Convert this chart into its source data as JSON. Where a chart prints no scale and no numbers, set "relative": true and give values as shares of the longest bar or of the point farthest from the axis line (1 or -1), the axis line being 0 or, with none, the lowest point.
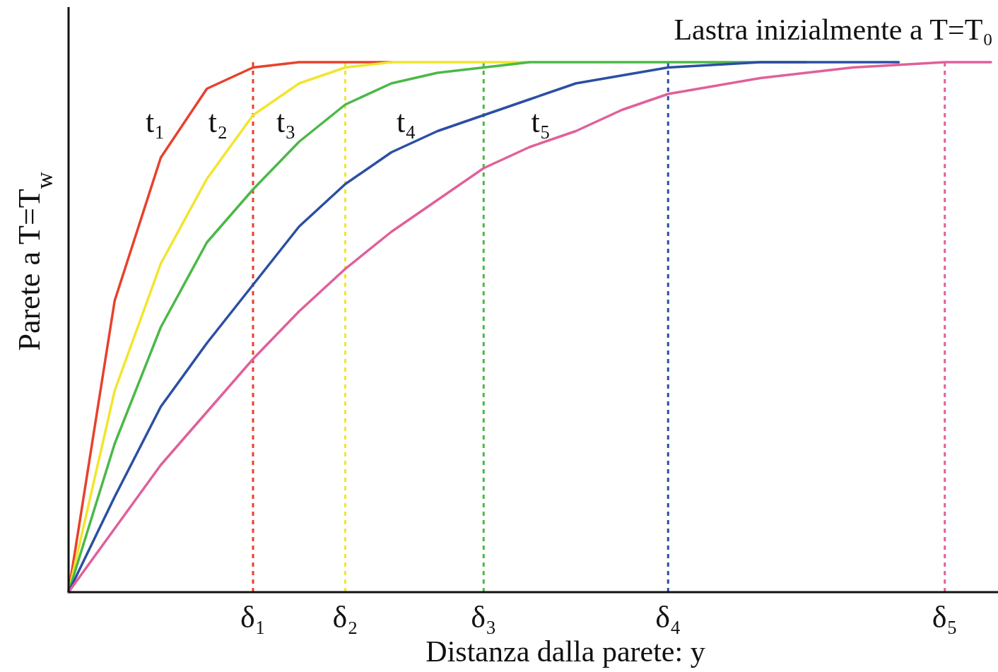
{
  "chart_data": {
    "type": "line",
    "relative": true,
    "title": "Lastra inizialmente a T=T₀",
    "xlabel": "Distanza dalla parete:  y",
    "ylabel": "Parete a T=T$_{w}$",
    "line_style": "solid",
    "categories": [
      null,
      null,
      null,
      null,
      "δ₁",
      null,
      "δ₂",
      null,
      null,
      "δ₃",
      null,
      null,
      null,
      "δ₄",
      null,
      null,
      null,
      null,
      null,
      "δ₅",
      null
    ],
    "series": [
      {
        "name": "t₁",
        "color": "#e8412c",
        "values": [
          0,
          0.55,
          0.82,
          0.95,
          0.99,
          1,
          1,
          1,
          null,
          null,
          null,
          null,
          null,
          null,
          null,
          null,
          null,
          null,
          null,
          null,
          null
        ]
      },
      {
        "name": "t₂",
        "color": "#f2e52e",
        "values": [
          0,
          0.38,
          0.62,
          0.78,
          0.9,
          0.96,
          0.99,
          1,
          1,
          1,
          1,
          null,
          null,
          null,
          null,
          null,
          null,
          null,
          null,
          null,
          null
        ]
      },
      {
        "name": "t₃",
        "color": "#4cb848",
        "values": [
          0,
          0.28,
          0.5,
          0.66,
          0.76,
          0.85,
          0.92,
          0.96,
          0.98,
          0.99,
          1,
          1,
          1,
          1,
          1,
          1,
          1,
          null,
          null,
          null,
          null
        ]
      },
      {
        "name": "t₄",
        "color": "#2b4fa3",
        "values": [
          0,
          0.18,
          0.35,
          0.47,
          0.58,
          0.69,
          0.77,
          0.83,
          0.87,
          0.9,
          0.93,
          0.96,
          0.975,
          0.99,
          0.995,
          1,
          1,
          1,
          1,
          null,
          null
        ]
      },
      {
        "name": "t₅",
        "color": "#e0609a",
        "values": [
          0,
          0.12,
          0.24,
          0.34,
          0.44,
          0.53,
          0.61,
          0.68,
          0.74,
          0.8,
          0.84,
          0.87,
          0.91,
          0.94,
          0.955,
          0.97,
          0.98,
          0.99,
          0.995,
          1,
          1
        ]
      }
    ],
    "ref_lines": [
      {
        "axis": "x",
        "value": "δ₁",
        "color": "#e8412c",
        "line_style": "dashed"
      },
      {
        "axis": "x",
        "value": "δ₂",
        "color": "#f2e52e",
        "line_style": "dashed"
      },
      {
        "axis": "x",
        "value": "δ₃",
        "color": "#4cb848",
        "line_style": "dashed"
      },
      {
        "axis": "x",
        "value": "δ₄",
        "color": "#2b4fa3",
        "line_style": "dashed"
      },
      {
        "axis": "x",
        "value": "δ₅",
        "color": "#e0609a",
        "line_style": "dashed"
      }
    ]
  }
}
